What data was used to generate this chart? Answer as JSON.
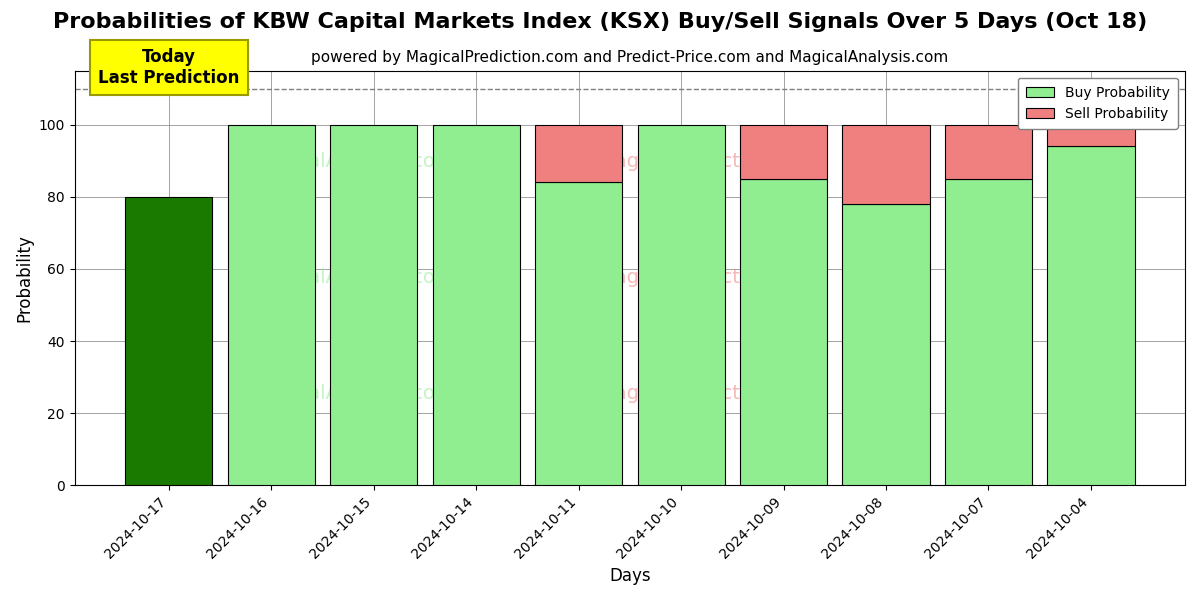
{
  "title": "Probabilities of KBW Capital Markets Index (KSX) Buy/Sell Signals Over 5 Days (Oct 18)",
  "subtitle": "powered by MagicalPrediction.com and Predict-Price.com and MagicalAnalysis.com",
  "xlabel": "Days",
  "ylabel": "Probability",
  "categories": [
    "2024-10-17",
    "2024-10-16",
    "2024-10-15",
    "2024-10-14",
    "2024-10-11",
    "2024-10-10",
    "2024-10-09",
    "2024-10-08",
    "2024-10-07",
    "2024-10-04"
  ],
  "buy_values": [
    80,
    100,
    100,
    100,
    84,
    100,
    85,
    78,
    85,
    94
  ],
  "sell_values": [
    0,
    0,
    0,
    0,
    16,
    0,
    15,
    22,
    15,
    6
  ],
  "today_bar_color": "#1a7a00",
  "buy_bar_color": "#90EE90",
  "sell_bar_color": "#F08080",
  "today_annotation_bg": "#FFFF00",
  "today_annotation_text": "Today\nLast Prediction",
  "ylim": [
    0,
    115
  ],
  "dashed_line_y": 110,
  "legend_buy": "Buy Probability",
  "legend_sell": "Sell Probability",
  "title_fontsize": 16,
  "subtitle_fontsize": 11,
  "bar_width": 0.85
}
